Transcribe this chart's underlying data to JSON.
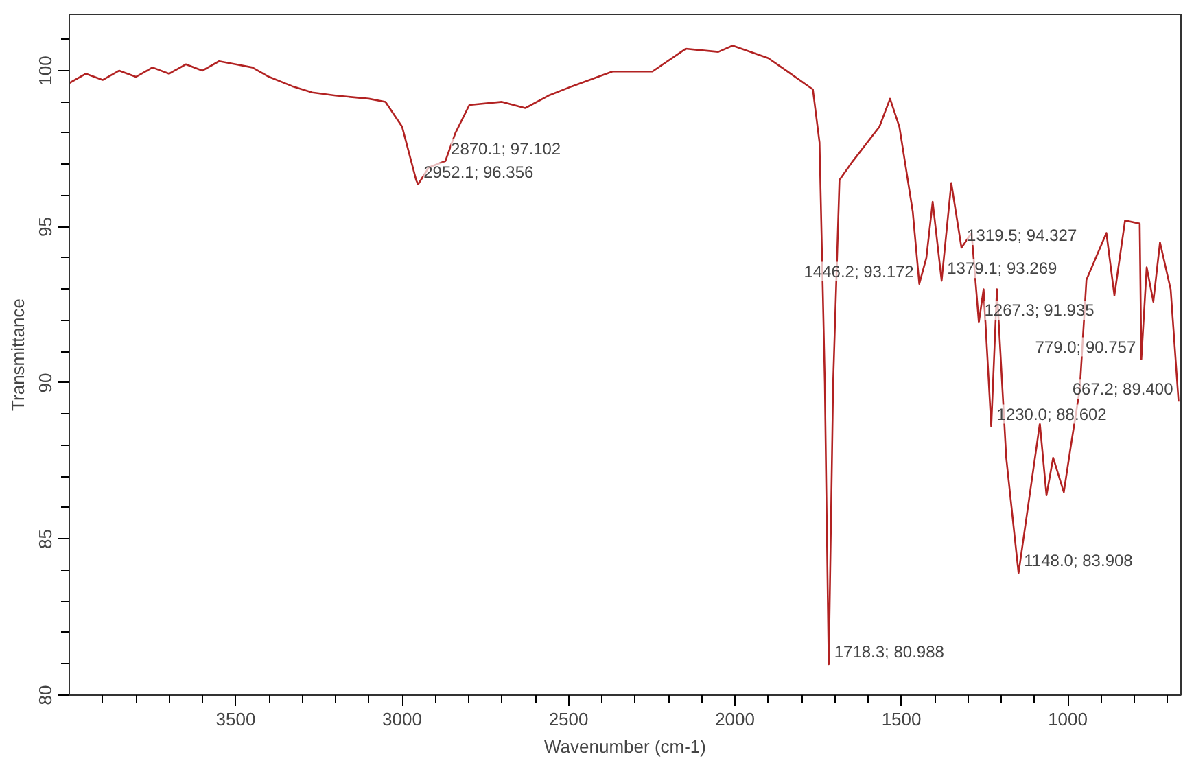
{
  "chart_data": {
    "type": "line",
    "xlabel": "Wavenumber (cm-1)",
    "ylabel": "Transmittance",
    "xlim": [
      4000,
      660
    ],
    "ylim": [
      80,
      101.8
    ],
    "xticks": [
      {
        "value": 3900,
        "label": null
      },
      {
        "value": 3800,
        "label": null
      },
      {
        "value": 3700,
        "label": null
      },
      {
        "value": 3600,
        "label": null
      },
      3500,
      {
        "value": 3400,
        "label": null
      },
      {
        "value": 3300,
        "label": null
      },
      {
        "value": 3200,
        "label": null
      },
      {
        "value": 3100,
        "label": null
      },
      3000,
      {
        "value": 2900,
        "label": null
      },
      {
        "value": 2800,
        "label": null
      },
      {
        "value": 2700,
        "label": null
      },
      {
        "value": 2600,
        "label": null
      },
      2500,
      {
        "value": 2400,
        "label": null
      },
      {
        "value": 2300,
        "label": null
      },
      {
        "value": 2200,
        "label": null
      },
      {
        "value": 2100,
        "label": null
      },
      2000,
      {
        "value": 1900,
        "label": null
      },
      {
        "value": 1800,
        "label": null
      },
      {
        "value": 1700,
        "label": null
      },
      {
        "value": 1600,
        "label": null
      },
      1500,
      {
        "value": 1400,
        "label": null
      },
      {
        "value": 1300,
        "label": null
      },
      {
        "value": 1200,
        "label": null
      },
      {
        "value": 1100,
        "label": null
      },
      1000,
      {
        "value": 900,
        "label": null
      },
      {
        "value": 800,
        "label": null
      },
      {
        "value": 700,
        "label": null
      }
    ],
    "yticks": [
      80,
      {
        "value": 81,
        "label": null
      },
      {
        "value": 82,
        "label": null
      },
      {
        "value": 83,
        "label": null
      },
      {
        "value": 84,
        "label": null
      },
      85,
      {
        "value": 86,
        "label": null
      },
      {
        "value": 87,
        "label": null
      },
      {
        "value": 88,
        "label": null
      },
      {
        "value": 89,
        "label": null
      },
      90,
      {
        "value": 91,
        "label": null
      },
      {
        "value": 92,
        "label": null
      },
      {
        "value": 93,
        "label": null
      },
      {
        "value": 94,
        "label": null
      },
      95,
      {
        "value": 96,
        "label": null
      },
      {
        "value": 97,
        "label": null
      },
      {
        "value": 98,
        "label": null
      },
      {
        "value": 99,
        "label": null
      },
      100,
      {
        "value": 101,
        "label": null
      }
    ],
    "grid": false,
    "marker": "none",
    "line_style": "solid",
    "series": [
      {
        "color": "#b22222",
        "x": [
          4000,
          3950,
          3900,
          3850,
          3800,
          3750,
          3700,
          3650,
          3600,
          3550,
          3500,
          3450,
          3400,
          3330,
          3270,
          3200,
          3100,
          3050,
          3000,
          2958,
          2952.1,
          2920,
          2870.1,
          2840,
          2798,
          2700,
          2630,
          2560,
          2489,
          2368,
          2248,
          2148,
          2050,
          2007,
          1900,
          1846,
          1766,
          1746,
          1730,
          1718.3,
          1705,
          1686,
          1646,
          1566,
          1534,
          1506,
          1466,
          1446.2,
          1425,
          1406,
          1379.1,
          1350,
          1319.5,
          1289,
          1267.3,
          1253,
          1230.0,
          1213,
          1185,
          1148.0,
          1124,
          1084,
          1064,
          1044,
          1012,
          992,
          964,
          944,
          884,
          860,
          828,
          784,
          779.0,
          763,
          743,
          723,
          691,
          667.2
        ],
        "values": [
          99.6,
          99.9,
          99.7,
          100.0,
          99.8,
          100.1,
          99.9,
          100.2,
          100.0,
          100.3,
          100.2,
          100.1,
          99.8,
          99.5,
          99.3,
          99.2,
          99.1,
          99.0,
          98.2,
          96.5,
          96.356,
          96.9,
          97.102,
          98.0,
          98.9,
          99.0,
          98.8,
          99.2,
          99.5,
          99.97,
          99.97,
          100.7,
          100.6,
          100.8,
          100.4,
          100.0,
          99.4,
          97.7,
          90.0,
          80.988,
          90.0,
          96.5,
          97.1,
          98.2,
          99.1,
          98.2,
          95.5,
          93.172,
          94.0,
          95.8,
          93.269,
          96.4,
          94.327,
          94.8,
          91.935,
          93.0,
          88.602,
          93.0,
          87.6,
          83.908,
          85.7,
          88.7,
          86.4,
          87.6,
          86.5,
          87.9,
          89.8,
          93.3,
          94.8,
          92.8,
          95.2,
          95.1,
          90.757,
          93.7,
          92.6,
          94.5,
          93.0,
          89.4
        ]
      }
    ],
    "annotations": [
      {
        "text": "2952.1; 96.356",
        "x": 2952.1,
        "y": 96.356
      },
      {
        "text": "2870.1; 97.102",
        "x": 2870.1,
        "y": 97.102
      },
      {
        "text": "1718.3; 80.988",
        "x": 1718.3,
        "y": 80.988
      },
      {
        "text": "1446.2; 93.172",
        "x": 1446.2,
        "y": 93.172
      },
      {
        "text": "1379.1; 93.269",
        "x": 1379.1,
        "y": 93.269
      },
      {
        "text": "1319.5; 94.327",
        "x": 1319.5,
        "y": 94.327
      },
      {
        "text": "1267.3; 91.935",
        "x": 1267.3,
        "y": 91.935
      },
      {
        "text": "1230.0; 88.602",
        "x": 1230.0,
        "y": 88.602
      },
      {
        "text": "1148.0; 83.908",
        "x": 1148.0,
        "y": 83.908
      },
      {
        "text": "779.0; 90.757",
        "x": 779.0,
        "y": 90.757
      },
      {
        "text": "667.2; 89.400",
        "x": 667.2,
        "y": 89.4
      }
    ]
  }
}
